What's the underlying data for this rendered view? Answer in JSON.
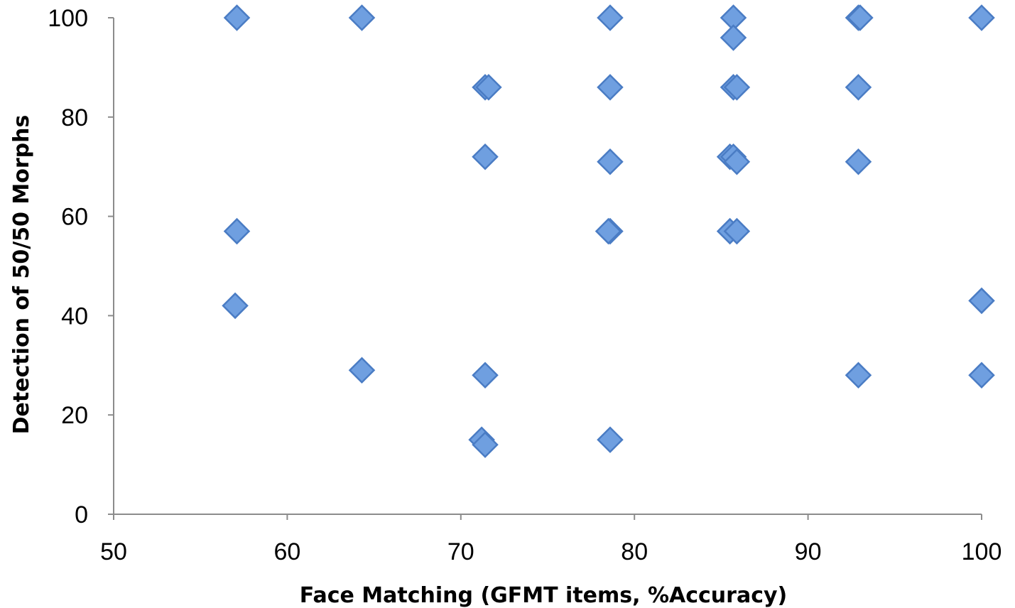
{
  "chart_data": {
    "type": "scatter",
    "title": "",
    "xlabel": "Face Matching (GFMT items, %Accuracy)",
    "ylabel": "Detection of 50/50 Morphs",
    "xlim": [
      50,
      100
    ],
    "ylim": [
      0,
      100
    ],
    "xticks": [
      "50",
      "60",
      "70",
      "80",
      "90",
      "100"
    ],
    "yticks": [
      "0",
      "20",
      "40",
      "60",
      "80",
      "100"
    ],
    "grid": false,
    "legend": "none",
    "marker": "diamond",
    "marker_fill": "#6f9fe0",
    "marker_stroke": "#4a7cc4",
    "axis_color": "#8c8c8c",
    "series": [
      {
        "points": [
          {
            "x": 57.1,
            "y": 100
          },
          {
            "x": 64.3,
            "y": 100
          },
          {
            "x": 78.6,
            "y": 100
          },
          {
            "x": 85.7,
            "y": 100
          },
          {
            "x": 92.9,
            "y": 100
          },
          {
            "x": 93.0,
            "y": 100
          },
          {
            "x": 100,
            "y": 100
          },
          {
            "x": 85.7,
            "y": 96
          },
          {
            "x": 71.4,
            "y": 86
          },
          {
            "x": 71.6,
            "y": 86
          },
          {
            "x": 78.6,
            "y": 86
          },
          {
            "x": 85.7,
            "y": 86
          },
          {
            "x": 85.9,
            "y": 86
          },
          {
            "x": 92.9,
            "y": 86
          },
          {
            "x": 71.4,
            "y": 72
          },
          {
            "x": 78.6,
            "y": 71
          },
          {
            "x": 85.5,
            "y": 72
          },
          {
            "x": 85.7,
            "y": 72
          },
          {
            "x": 85.9,
            "y": 71
          },
          {
            "x": 92.9,
            "y": 71
          },
          {
            "x": 57.1,
            "y": 57
          },
          {
            "x": 78.6,
            "y": 57
          },
          {
            "x": 78.5,
            "y": 57
          },
          {
            "x": 85.5,
            "y": 57
          },
          {
            "x": 85.9,
            "y": 57
          },
          {
            "x": 57.0,
            "y": 42
          },
          {
            "x": 100,
            "y": 43
          },
          {
            "x": 64.3,
            "y": 29
          },
          {
            "x": 71.4,
            "y": 28
          },
          {
            "x": 92.9,
            "y": 28
          },
          {
            "x": 100,
            "y": 28
          },
          {
            "x": 71.2,
            "y": 15
          },
          {
            "x": 71.4,
            "y": 14
          },
          {
            "x": 78.6,
            "y": 15
          }
        ]
      }
    ]
  }
}
